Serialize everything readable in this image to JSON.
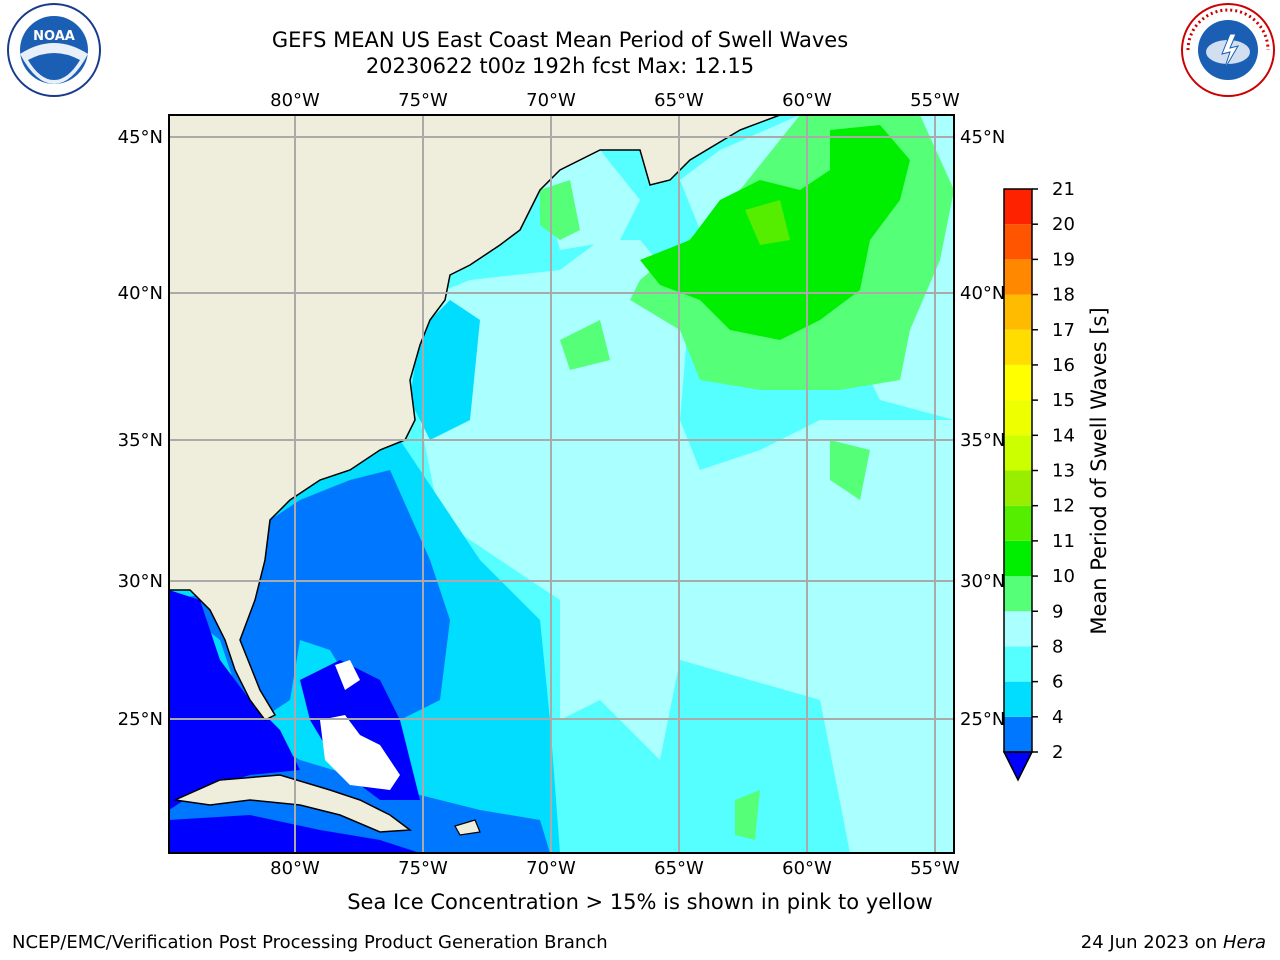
{
  "title_line1": "GEFS MEAN US East Coast Mean Period of Swell Waves",
  "title_line2": "20230622 t00z 192h fcst   Max: 12.15",
  "lon_labels": [
    "80°W",
    "75°W",
    "70°W",
    "65°W",
    "60°W",
    "55°W"
  ],
  "lat_labels": [
    "45°N",
    "40°N",
    "35°N",
    "30°N",
    "25°N"
  ],
  "colorbar": {
    "label": "Mean Period of Swell Waves [s]",
    "ticks": [
      "2",
      "4",
      "6",
      "8",
      "9",
      "10",
      "11",
      "12",
      "13",
      "14",
      "15",
      "16",
      "17",
      "18",
      "19",
      "20",
      "21"
    ],
    "colors": [
      "#0077ff",
      "#00ddff",
      "#55ffff",
      "#aaffff",
      "#55ff77",
      "#00ee00",
      "#55ee00",
      "#99ee00",
      "#ccff00",
      "#eeff00",
      "#ffff00",
      "#ffdd00",
      "#ffbb00",
      "#ff8800",
      "#ff5500",
      "#ff2200"
    ],
    "under_color": "#0000ff"
  },
  "logos": {
    "left": "NOAA",
    "right": "NATIONAL WEATHER SERVICE"
  },
  "caption": "Sea Ice Concentration > 15% is shown in pink to yellow",
  "credit": "NCEP/EMC/Verification Post Processing Product Generation Branch",
  "date_stamp": "24 Jun 2023 on ",
  "machine": "Hera"
}
